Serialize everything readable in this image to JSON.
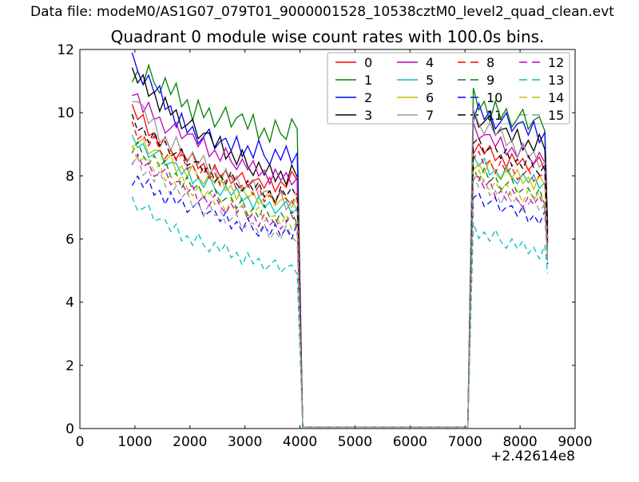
{
  "figure": {
    "background": "#ffffff"
  },
  "header": {
    "data_file": "Data file: modeM0/AS1G07_079T01_9000001528_10538cztM0_level2_quad_clean.evt"
  },
  "legend_box": {
    "border_color": "#aaaaaa",
    "background": "#ffffff"
  },
  "chart_data": {
    "type": "line",
    "title": "Quadrant 0 module wise count rates with 100.0s bins.",
    "x_offset_label": "+2.42614e8",
    "xlabel": "",
    "ylabel": "",
    "xlim": [
      0,
      9000
    ],
    "ylim": [
      0,
      12
    ],
    "x_ticks": [
      0,
      1000,
      2000,
      3000,
      4000,
      5000,
      6000,
      7000,
      8000,
      9000
    ],
    "y_ticks": [
      0,
      2,
      4,
      6,
      8,
      10,
      12
    ],
    "grid": false,
    "bin_seconds": 100,
    "legend_position": "upper right inside axes, 4 columns",
    "gap": {
      "drop_end_x": 4050,
      "rise_start_x": 7050,
      "gap_value": 0.04
    },
    "segment_a_start_x": 950,
    "segment_a_end_x": 3950,
    "segment_b_start_x": 7150,
    "segment_b_end_x": 8450,
    "series_end_x": 8500,
    "anchors_a_x": [
      950,
      1500,
      2000,
      2500,
      3000,
      3500,
      3950
    ],
    "anchors_b_x": [
      7150,
      7600,
      8050,
      8450
    ],
    "noise_table": [
      0.55,
      -0.4,
      0.8,
      -0.75,
      0.2,
      -0.6,
      0.95,
      -0.15,
      -0.7,
      0.6,
      -0.25,
      0.85,
      -0.5,
      0.3,
      -0.9,
      0.7,
      -0.35,
      0.5,
      -0.65,
      0.1,
      0.9,
      -0.45,
      0.25
    ],
    "series": [
      {
        "label": "0",
        "color": "#ff0000",
        "dash": false,
        "amp": 0.3,
        "phase": 0,
        "a": [
          10.1,
          9.0,
          8.5,
          8.1,
          7.8,
          7.7,
          7.9
        ],
        "b": [
          8.9,
          8.6,
          8.4,
          8.3
        ],
        "end": 6.0
      },
      {
        "label": "1",
        "color": "#008000",
        "dash": false,
        "amp": 0.45,
        "phase": 3,
        "a": [
          11.3,
          10.9,
          10.2,
          9.8,
          9.7,
          9.3,
          9.6
        ],
        "b": [
          10.4,
          10.0,
          9.7,
          9.6
        ],
        "end": 6.5
      },
      {
        "label": "2",
        "color": "#0000ff",
        "dash": false,
        "amp": 0.4,
        "phase": 6,
        "a": [
          11.6,
          10.4,
          9.4,
          9.0,
          8.9,
          8.6,
          8.6
        ],
        "b": [
          10.1,
          9.7,
          9.5,
          9.3
        ],
        "end": 6.3
      },
      {
        "label": "3",
        "color": "#000000",
        "dash": false,
        "amp": 0.38,
        "phase": 9,
        "a": [
          11.2,
          10.3,
          9.5,
          9.0,
          8.4,
          8.0,
          8.1
        ],
        "b": [
          9.9,
          9.4,
          9.1,
          8.9
        ],
        "end": 6.2
      },
      {
        "label": "4",
        "color": "#bf00bf",
        "dash": false,
        "amp": 0.32,
        "phase": 12,
        "a": [
          10.7,
          9.6,
          9.2,
          8.7,
          8.3,
          8.0,
          7.9
        ],
        "b": [
          9.4,
          9.0,
          8.7,
          8.5
        ],
        "end": 6.0
      },
      {
        "label": "5",
        "color": "#00bfbf",
        "dash": false,
        "amp": 0.28,
        "phase": 15,
        "a": [
          9.1,
          8.5,
          8.0,
          7.6,
          7.3,
          7.0,
          6.9
        ],
        "b": [
          8.5,
          8.1,
          7.9,
          7.7
        ],
        "end": 5.8
      },
      {
        "label": "6",
        "color": "#bfbf00",
        "dash": false,
        "amp": 0.3,
        "phase": 18,
        "a": [
          9.1,
          8.6,
          8.1,
          7.8,
          7.4,
          7.2,
          7.1
        ],
        "b": [
          8.4,
          8.1,
          7.9,
          7.8
        ],
        "end": 5.9
      },
      {
        "label": "7",
        "color": "#999999",
        "dash": false,
        "amp": 0.35,
        "phase": 21,
        "a": [
          10.5,
          9.2,
          8.6,
          8.1,
          7.7,
          7.3,
          7.1
        ],
        "b": [
          9.8,
          9.3,
          8.8,
          8.4
        ],
        "end": 5.6
      },
      {
        "label": "8",
        "color": "#ff0000",
        "dash": true,
        "amp": 0.28,
        "phase": 2,
        "a": [
          9.5,
          8.8,
          8.3,
          7.9,
          7.6,
          7.3,
          7.3
        ],
        "b": [
          8.6,
          8.3,
          8.0,
          7.9
        ],
        "end": 5.7
      },
      {
        "label": "9",
        "color": "#008000",
        "dash": true,
        "amp": 0.3,
        "phase": 5,
        "a": [
          8.9,
          8.3,
          7.7,
          7.3,
          7.0,
          6.7,
          6.6
        ],
        "b": [
          8.2,
          7.8,
          7.5,
          7.3
        ],
        "end": 5.5
      },
      {
        "label": "10",
        "color": "#0000ff",
        "dash": true,
        "amp": 0.3,
        "phase": 8,
        "a": [
          7.9,
          7.4,
          7.0,
          6.7,
          6.4,
          6.2,
          6.3
        ],
        "b": [
          7.4,
          7.0,
          6.8,
          6.6
        ],
        "end": 5.2
      },
      {
        "label": "11",
        "color": "#000000",
        "dash": true,
        "amp": 0.3,
        "phase": 11,
        "a": [
          9.7,
          9.0,
          8.4,
          8.0,
          7.7,
          7.4,
          7.5
        ],
        "b": [
          9.0,
          8.7,
          8.4,
          8.2
        ],
        "end": 5.9
      },
      {
        "label": "12",
        "color": "#bf00bf",
        "dash": true,
        "amp": 0.28,
        "phase": 14,
        "a": [
          8.6,
          8.0,
          7.5,
          7.1,
          6.8,
          6.5,
          6.5
        ],
        "b": [
          7.9,
          7.5,
          7.2,
          7.1
        ],
        "end": 5.4
      },
      {
        "label": "13",
        "color": "#00bfbf",
        "dash": true,
        "amp": 0.28,
        "phase": 17,
        "a": [
          7.2,
          6.5,
          6.0,
          5.7,
          5.4,
          5.1,
          5.0
        ],
        "b": [
          6.3,
          6.0,
          5.7,
          5.6
        ],
        "end": 4.9
      },
      {
        "label": "14",
        "color": "#bfbf00",
        "dash": true,
        "amp": 0.28,
        "phase": 20,
        "a": [
          8.7,
          8.1,
          7.6,
          7.2,
          6.9,
          6.6,
          6.5
        ],
        "b": [
          8.0,
          7.6,
          7.4,
          7.3
        ],
        "end": 5.5
      },
      {
        "label": "15",
        "color": "#999999",
        "dash": true,
        "amp": 0.3,
        "phase": 1,
        "a": [
          8.5,
          7.8,
          7.2,
          6.8,
          6.4,
          6.2,
          6.1
        ],
        "b": [
          7.8,
          7.4,
          7.1,
          7.0
        ],
        "end": 5.3
      }
    ]
  }
}
